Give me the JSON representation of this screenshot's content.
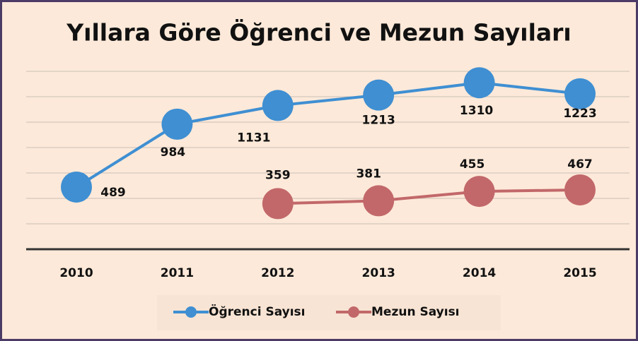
{
  "chart_data": {
    "type": "line",
    "title": "Yıllara Göre Öğrenci ve Mezun Sayıları",
    "categories": [
      "2010",
      "2011",
      "2012",
      "2013",
      "2014",
      "2015"
    ],
    "series": [
      {
        "name": "Öğrenci Sayısı",
        "color": "#3f8fd2",
        "values": [
          489,
          984,
          1131,
          1213,
          1310,
          1223
        ]
      },
      {
        "name": "Mezun Sayısı",
        "color": "#c2686a",
        "values": [
          null,
          null,
          359,
          381,
          455,
          467
        ]
      }
    ],
    "ylim": [
      0,
      1400
    ],
    "yticks": [
      0,
      200,
      400,
      600,
      800,
      1000,
      1200,
      1400
    ],
    "grid": true,
    "legend": "bottom"
  }
}
